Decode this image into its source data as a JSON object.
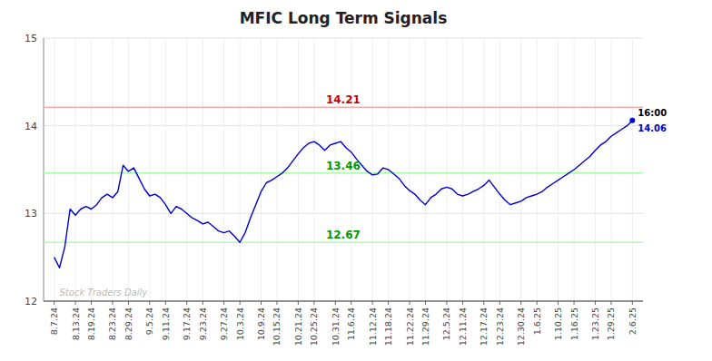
{
  "chart_data": {
    "type": "line",
    "title": "MFIC Long Term Signals",
    "categories": [
      "8.7.24",
      null,
      null,
      null,
      "8.13.24",
      null,
      null,
      "8.19.24",
      null,
      null,
      null,
      "8.23.24",
      null,
      null,
      "8.29.24",
      null,
      null,
      null,
      "9.5.24",
      null,
      null,
      "9.11.24",
      null,
      null,
      null,
      "9.17.24",
      null,
      null,
      "9.23.24",
      null,
      null,
      null,
      "9.27.24",
      null,
      null,
      "10.3.24",
      null,
      null,
      null,
      "10.9.24",
      null,
      null,
      "10.15.24",
      null,
      null,
      null,
      "10.21.24",
      null,
      null,
      "10.25.24",
      null,
      null,
      null,
      "10.31.24",
      null,
      null,
      "11.6.24",
      null,
      null,
      null,
      "11.12.24",
      null,
      null,
      "11.18.24",
      null,
      null,
      null,
      "11.22.24",
      null,
      null,
      "11.29.24",
      null,
      null,
      null,
      "12.5.24",
      null,
      null,
      "12.11.24",
      null,
      null,
      null,
      "12.17.24",
      null,
      null,
      "12.23.24",
      null,
      null,
      null,
      "12.30.24",
      null,
      null,
      "1.6.25",
      null,
      null,
      null,
      "1.10.25",
      null,
      null,
      "1.16.25",
      null,
      null,
      null,
      "1.23.25",
      null,
      null,
      "1.29.25",
      null,
      null,
      null,
      "2.6.25"
    ],
    "values": [
      12.5,
      12.38,
      12.62,
      13.05,
      12.98,
      13.05,
      13.08,
      13.05,
      13.1,
      13.18,
      13.22,
      13.18,
      13.25,
      13.55,
      13.48,
      13.52,
      13.4,
      13.28,
      13.2,
      13.22,
      13.18,
      13.1,
      13.0,
      13.08,
      13.05,
      13.0,
      12.95,
      12.92,
      12.88,
      12.9,
      12.85,
      12.8,
      12.78,
      12.8,
      12.74,
      12.67,
      12.78,
      12.95,
      13.1,
      13.25,
      13.35,
      13.38,
      13.42,
      13.46,
      13.52,
      13.6,
      13.68,
      13.75,
      13.8,
      13.82,
      13.78,
      13.72,
      13.78,
      13.8,
      13.82,
      13.75,
      13.7,
      13.62,
      13.55,
      13.48,
      13.44,
      13.45,
      13.52,
      13.5,
      13.45,
      13.4,
      13.32,
      13.26,
      13.22,
      13.15,
      13.1,
      13.18,
      13.22,
      13.28,
      13.3,
      13.28,
      13.22,
      13.2,
      13.22,
      13.25,
      13.28,
      13.32,
      13.38,
      13.3,
      13.22,
      13.15,
      13.1,
      13.12,
      13.14,
      13.18,
      13.2,
      13.22,
      13.25,
      13.3,
      13.34,
      13.38,
      13.42,
      13.46,
      13.5,
      13.55,
      13.6,
      13.65,
      13.72,
      13.78,
      13.82,
      13.88,
      13.92,
      13.96,
      14.0,
      14.06
    ],
    "color": "#0000cc",
    "ylim": [
      12,
      15
    ],
    "yticks": [
      12,
      13,
      14,
      15
    ],
    "grid": true,
    "reference_lines": [
      {
        "value": 14.21,
        "label": "14.21",
        "color": "#ffaaaa",
        "label_color": "#cc0000"
      },
      {
        "value": 13.46,
        "label": "13.46",
        "color": "#aaffaa",
        "label_color": "#009900"
      },
      {
        "value": 12.67,
        "label": "12.67",
        "color": "#aaffaa",
        "label_color": "#009900"
      }
    ],
    "annotations": [
      {
        "text": "16:00"
      },
      {
        "text": "14.06",
        "value": 14.06
      },
      {
        "text": "Stock Traders Daily",
        "color": "#bbbbbb"
      }
    ]
  }
}
